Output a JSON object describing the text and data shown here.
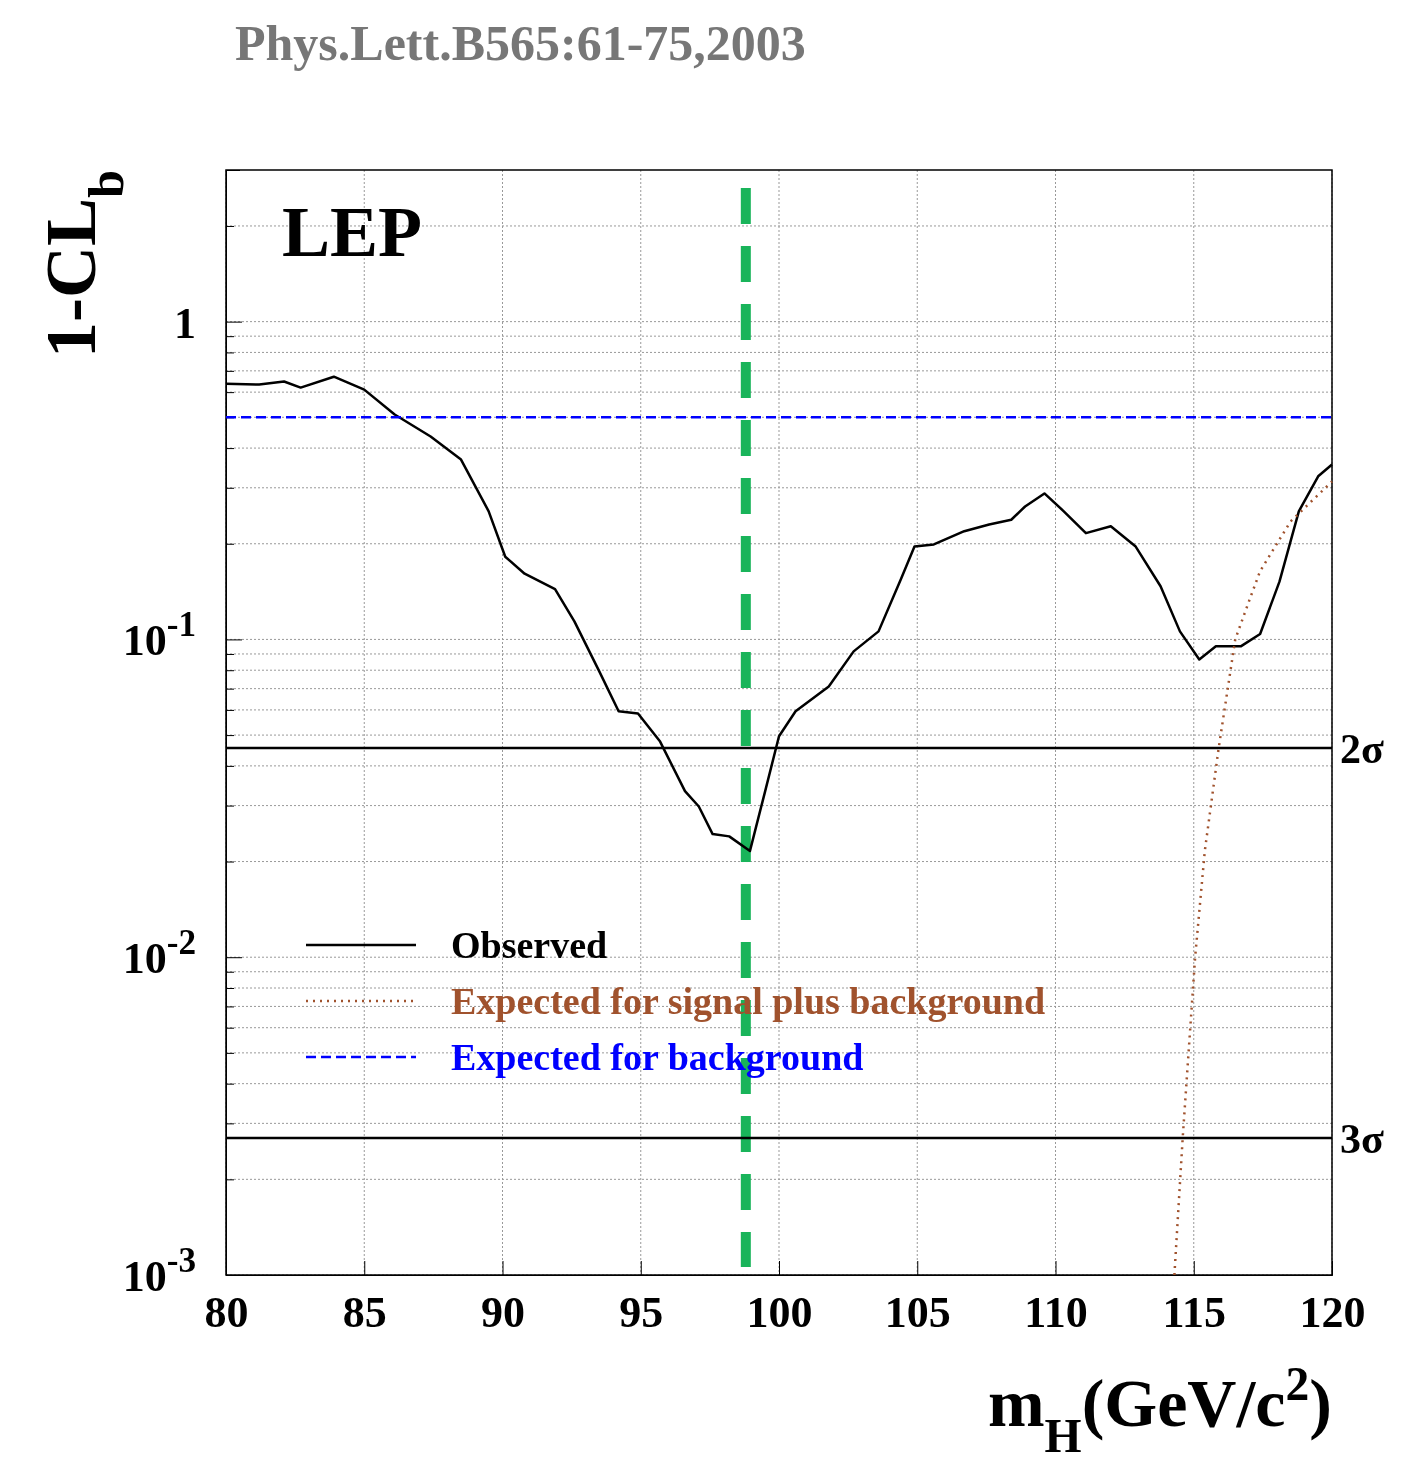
{
  "chart_data": {
    "type": "line",
    "annotations": [
      "Phys.Lett.B565:61-75,2003",
      "LEP"
    ],
    "xlabel": "m$_{H}$(GeV/c$^{2}$)",
    "ylabel": "1-CL$_{b}$",
    "log": "y",
    "grid": true,
    "legend": "bottom left",
    "xlim": [
      80,
      120
    ],
    "xticks": [
      80,
      85,
      90,
      95,
      100,
      105,
      110,
      115,
      120
    ],
    "ylim": [
      0.001,
      3
    ],
    "yticks": [
      {
        "value": 0.001,
        "label": "10$^{-3}$"
      },
      {
        "value": 0.002,
        "label": null
      },
      {
        "value": 0.003,
        "label": null
      },
      {
        "value": 0.004,
        "label": null
      },
      {
        "value": 0.005,
        "label": null
      },
      {
        "value": 0.006,
        "label": null
      },
      {
        "value": 0.007,
        "label": null
      },
      {
        "value": 0.008,
        "label": null
      },
      {
        "value": 0.009,
        "label": null
      },
      {
        "value": 0.01,
        "label": "10$^{-2}$"
      },
      {
        "value": 0.02,
        "label": null
      },
      {
        "value": 0.03,
        "label": null
      },
      {
        "value": 0.04,
        "label": null
      },
      {
        "value": 0.05,
        "label": null
      },
      {
        "value": 0.06,
        "label": null
      },
      {
        "value": 0.07,
        "label": null
      },
      {
        "value": 0.08,
        "label": null
      },
      {
        "value": 0.09,
        "label": null
      },
      {
        "value": 0.1,
        "label": "10$^{-1}$"
      },
      {
        "value": 0.2,
        "label": null
      },
      {
        "value": 0.3,
        "label": null
      },
      {
        "value": 0.4,
        "label": null
      },
      {
        "value": 0.5,
        "label": null
      },
      {
        "value": 0.6,
        "label": null
      },
      {
        "value": 0.7,
        "label": null
      },
      {
        "value": 0.8,
        "label": null
      },
      {
        "value": 0.9,
        "label": null
      },
      1,
      {
        "value": 2,
        "label": null
      }
    ],
    "ref_lines": [
      {
        "axis": "x",
        "value": 98.8,
        "label": null,
        "color": "#19b45a",
        "line_style": "dashed"
      },
      {
        "axis": "y",
        "value": 0.0455,
        "label": "2σ",
        "color": "#000000",
        "line_style": "solid"
      },
      {
        "axis": "y",
        "value": 0.0027,
        "label": "3σ",
        "color": "#000000",
        "line_style": "solid"
      }
    ],
    "series": [
      {
        "name": "Observed",
        "color": "#000000",
        "line_style": "solid",
        "x": [
          80,
          81.2,
          82.1,
          82.7,
          83.9,
          85.0,
          86.1,
          87.4,
          88.5,
          89.5,
          90.1,
          90.8,
          91.9,
          92.6,
          93.5,
          94.2,
          94.9,
          95.7,
          96.6,
          97.1,
          97.6,
          98.2,
          98.95,
          99.5,
          100.0,
          100.6,
          101.8,
          102.7,
          103.6,
          104.4,
          104.9,
          105.6,
          106.7,
          107.6,
          108.4,
          108.9,
          109.6,
          110.3,
          111.1,
          112.0,
          112.9,
          113.8,
          114.5,
          115.2,
          115.8,
          116.7,
          117.4,
          118.1,
          118.8,
          119.5,
          120
        ],
        "values": [
          0.638,
          0.634,
          0.648,
          0.62,
          0.671,
          0.611,
          0.51,
          0.435,
          0.368,
          0.253,
          0.182,
          0.161,
          0.144,
          0.114,
          0.0793,
          0.0594,
          0.0585,
          0.0477,
          0.0333,
          0.0298,
          0.0244,
          0.024,
          0.0216,
          0.0333,
          0.0496,
          0.0594,
          0.0711,
          0.0917,
          0.106,
          0.154,
          0.196,
          0.199,
          0.219,
          0.23,
          0.238,
          0.262,
          0.288,
          0.253,
          0.216,
          0.227,
          0.196,
          0.147,
          0.106,
          0.0865,
          0.0951,
          0.0951,
          0.104,
          0.152,
          0.253,
          0.326,
          0.355
        ]
      },
      {
        "name": "Expected for signal plus background",
        "color": "#a0522d",
        "line_style": "dotted",
        "x": [
          114.3,
          114.6,
          115.05,
          115.4,
          115.9,
          116.5,
          117.0,
          117.4,
          118.5,
          120
        ],
        "values": [
          0.001,
          0.0027,
          0.01,
          0.0216,
          0.0454,
          0.1,
          0.132,
          0.164,
          0.235,
          0.314
        ]
      },
      {
        "name": "Expected for background",
        "color": "#0000ff",
        "line_style": "dashed",
        "x": [
          80,
          120
        ],
        "values": [
          0.5,
          0.5
        ]
      }
    ]
  }
}
